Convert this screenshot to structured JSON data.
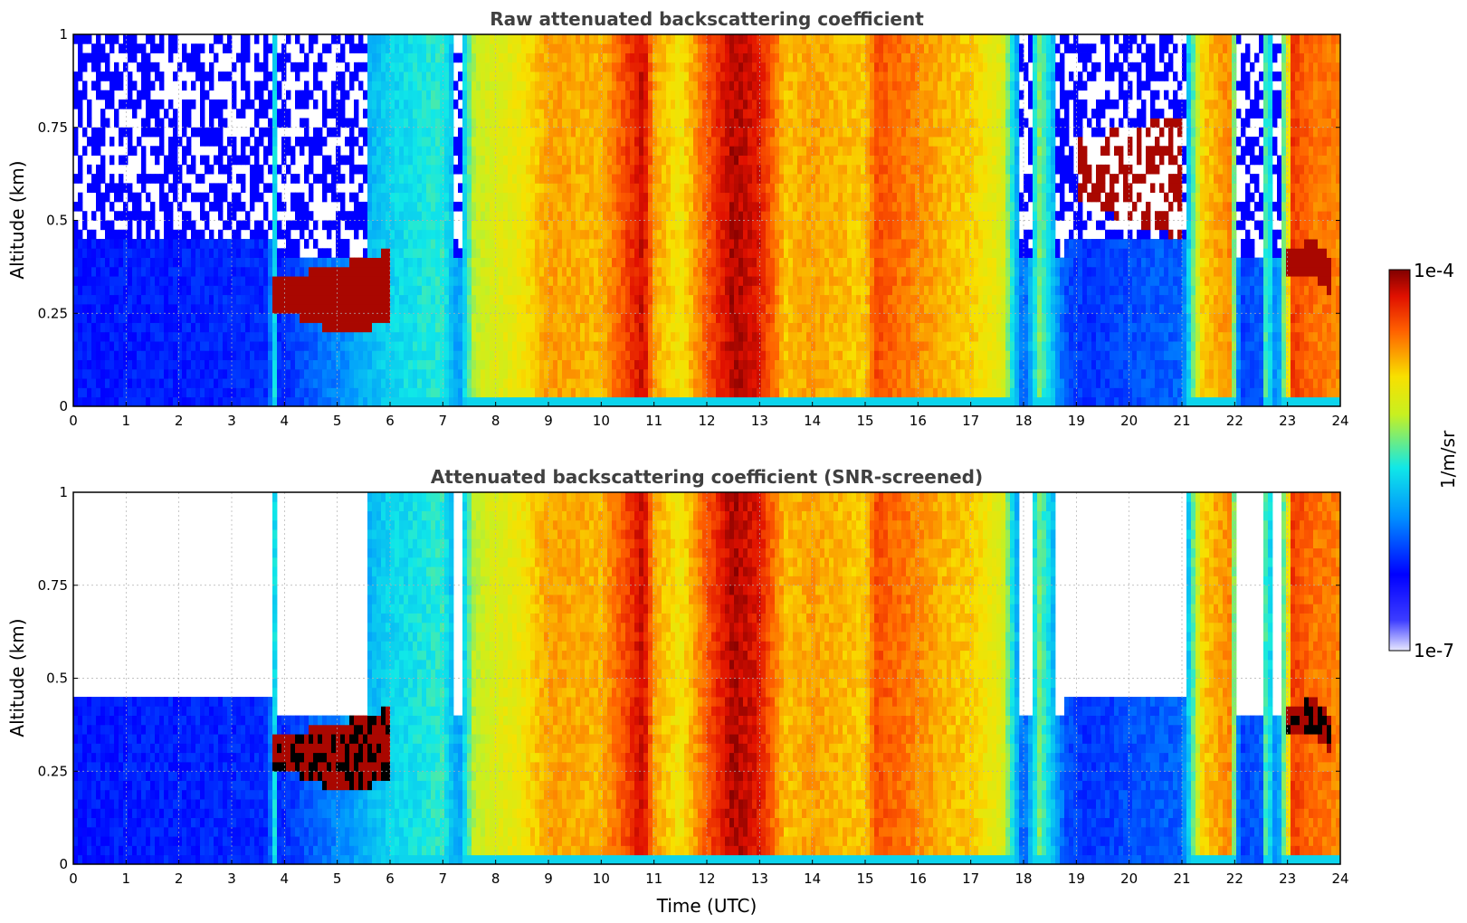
{
  "chart_data": [
    {
      "type": "heatmap",
      "title": "Raw attenuated backscattering coefficient",
      "xlabel": "",
      "ylabel": "Altitude (km)",
      "xlim": [
        0,
        24
      ],
      "ylim": [
        0,
        1
      ],
      "xticks": [
        "0",
        "1",
        "2",
        "3",
        "4",
        "5",
        "6",
        "7",
        "8",
        "9",
        "10",
        "11",
        "12",
        "13",
        "14",
        "15",
        "16",
        "17",
        "18",
        "19",
        "20",
        "21",
        "22",
        "23",
        "24"
      ],
      "yticks": [
        "0",
        "0.25",
        "0.5",
        "0.75",
        "1"
      ],
      "grid": true,
      "screened": false,
      "time_utc": [
        0,
        1,
        2,
        3,
        3.8,
        4,
        5,
        6,
        7,
        8,
        9,
        10,
        10.7,
        11,
        12,
        12.5,
        13,
        14,
        15,
        15.5,
        16,
        17,
        18,
        18.5,
        19,
        20,
        21,
        21.5,
        22,
        22.5,
        23,
        23.5,
        23.8
      ],
      "cloud_base_km": [
        null,
        null,
        null,
        null,
        0.25,
        0.25,
        0.2,
        0.22,
        null,
        null,
        null,
        null,
        0.0,
        null,
        null,
        0.0,
        null,
        null,
        null,
        null,
        null,
        null,
        null,
        null,
        0.55,
        0.5,
        0.45,
        null,
        null,
        null,
        0.35,
        0.35,
        0.3
      ],
      "cloud_top_km": [
        null,
        null,
        null,
        null,
        0.35,
        0.35,
        0.38,
        0.42,
        null,
        null,
        null,
        null,
        1.0,
        null,
        null,
        1.0,
        null,
        null,
        null,
        null,
        null,
        null,
        null,
        null,
        0.72,
        0.75,
        0.78,
        null,
        null,
        null,
        0.42,
        0.45,
        0.4
      ],
      "colorbar": {
        "label": "1/m/sr",
        "min_label": "1e-7",
        "max_label": "1e-4",
        "colormap": "jet",
        "log_scale": true
      }
    },
    {
      "type": "heatmap",
      "title": "Attenuated backscattering coefficient (SNR-screened)",
      "xlabel": "Time (UTC)",
      "ylabel": "Altitude (km)",
      "xlim": [
        0,
        24
      ],
      "ylim": [
        0,
        1
      ],
      "xticks": [
        "0",
        "1",
        "2",
        "3",
        "4",
        "5",
        "6",
        "7",
        "8",
        "9",
        "10",
        "11",
        "12",
        "13",
        "14",
        "15",
        "16",
        "17",
        "18",
        "19",
        "20",
        "21",
        "22",
        "23",
        "24"
      ],
      "yticks": [
        "0",
        "0.25",
        "0.5",
        "0.75",
        "1"
      ],
      "grid": true,
      "screened": true,
      "colorbar": {
        "label": "1/m/sr",
        "min_label": "1e-7",
        "max_label": "1e-4",
        "colormap": "jet",
        "log_scale": true
      }
    }
  ]
}
